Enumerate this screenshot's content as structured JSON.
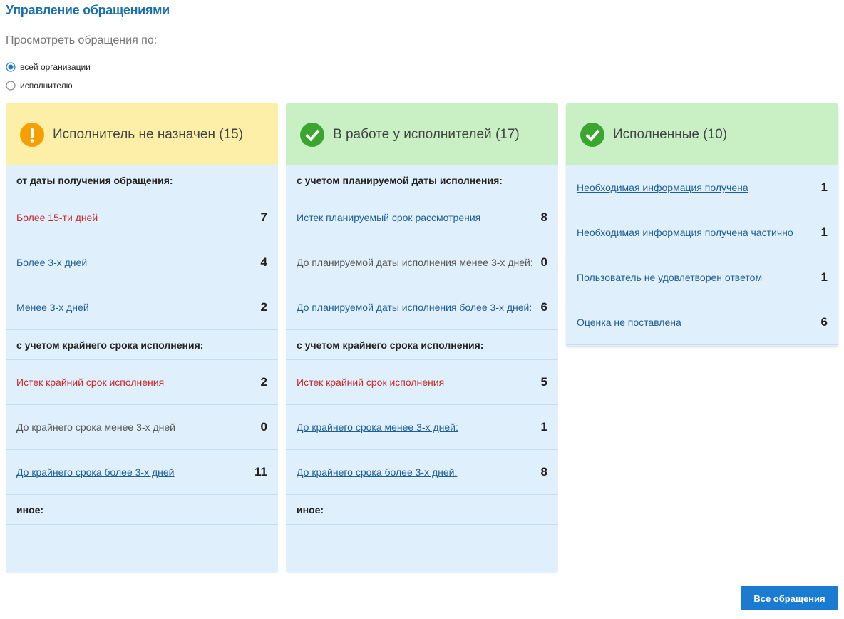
{
  "header": {
    "title": "Управление обращениями"
  },
  "filter": {
    "label": "Просмотреть обращения по:",
    "options": [
      {
        "label": "всей организации",
        "selected": true
      },
      {
        "label": "исполнителю",
        "selected": false
      }
    ]
  },
  "panels": [
    {
      "title": "Исполнитель не назначен (15)",
      "rows": [
        {
          "label": "от даты получения обращения:"
        },
        {
          "label": "Более 15-ти дней",
          "count": 7
        },
        {
          "label": "Более 3-х дней",
          "count": 4
        },
        {
          "label": "Менее 3-х дней",
          "count": 2
        },
        {
          "label": "с учетом крайнего срока исполнения:"
        },
        {
          "label": "Истек крайний срок исполнения",
          "count": 2
        },
        {
          "label": "До крайнего срока менее 3-х дней",
          "count": 0
        },
        {
          "label": "До крайнего срока более 3-х дней",
          "count": 11
        },
        {
          "label": "иное:"
        }
      ]
    },
    {
      "title": "В работе у исполнителей (17)",
      "rows": [
        {
          "label": "с учетом планируемой даты исполнения:"
        },
        {
          "label": "Истек планируемый срок рассмотрения",
          "count": 8
        },
        {
          "label": "До планируемой даты исполнения менее 3-х дней:",
          "count": 0
        },
        {
          "label": "До планируемой даты исполнения более 3-х дней:",
          "count": 6
        },
        {
          "label": "с учетом крайнего срока исполнения:"
        },
        {
          "label": "Истек крайний срок исполнения",
          "count": 5
        },
        {
          "label": "До крайнего срока менее 3-х дней:",
          "count": 1
        },
        {
          "label": "До крайнего срока более 3-х дней:",
          "count": 8
        },
        {
          "label": "иное:"
        }
      ]
    },
    {
      "title": "Исполненные (10)",
      "rows": [
        {
          "label": "Необходимая информация получена",
          "count": 1
        },
        {
          "label": "Необходимая информация получена частично",
          "count": 1
        },
        {
          "label": "Пользователь не удовлетворен ответом",
          "count": 1
        },
        {
          "label": "Оценка не поставлена",
          "count": 6
        }
      ]
    }
  ],
  "button": {
    "label": "Все обращения"
  }
}
